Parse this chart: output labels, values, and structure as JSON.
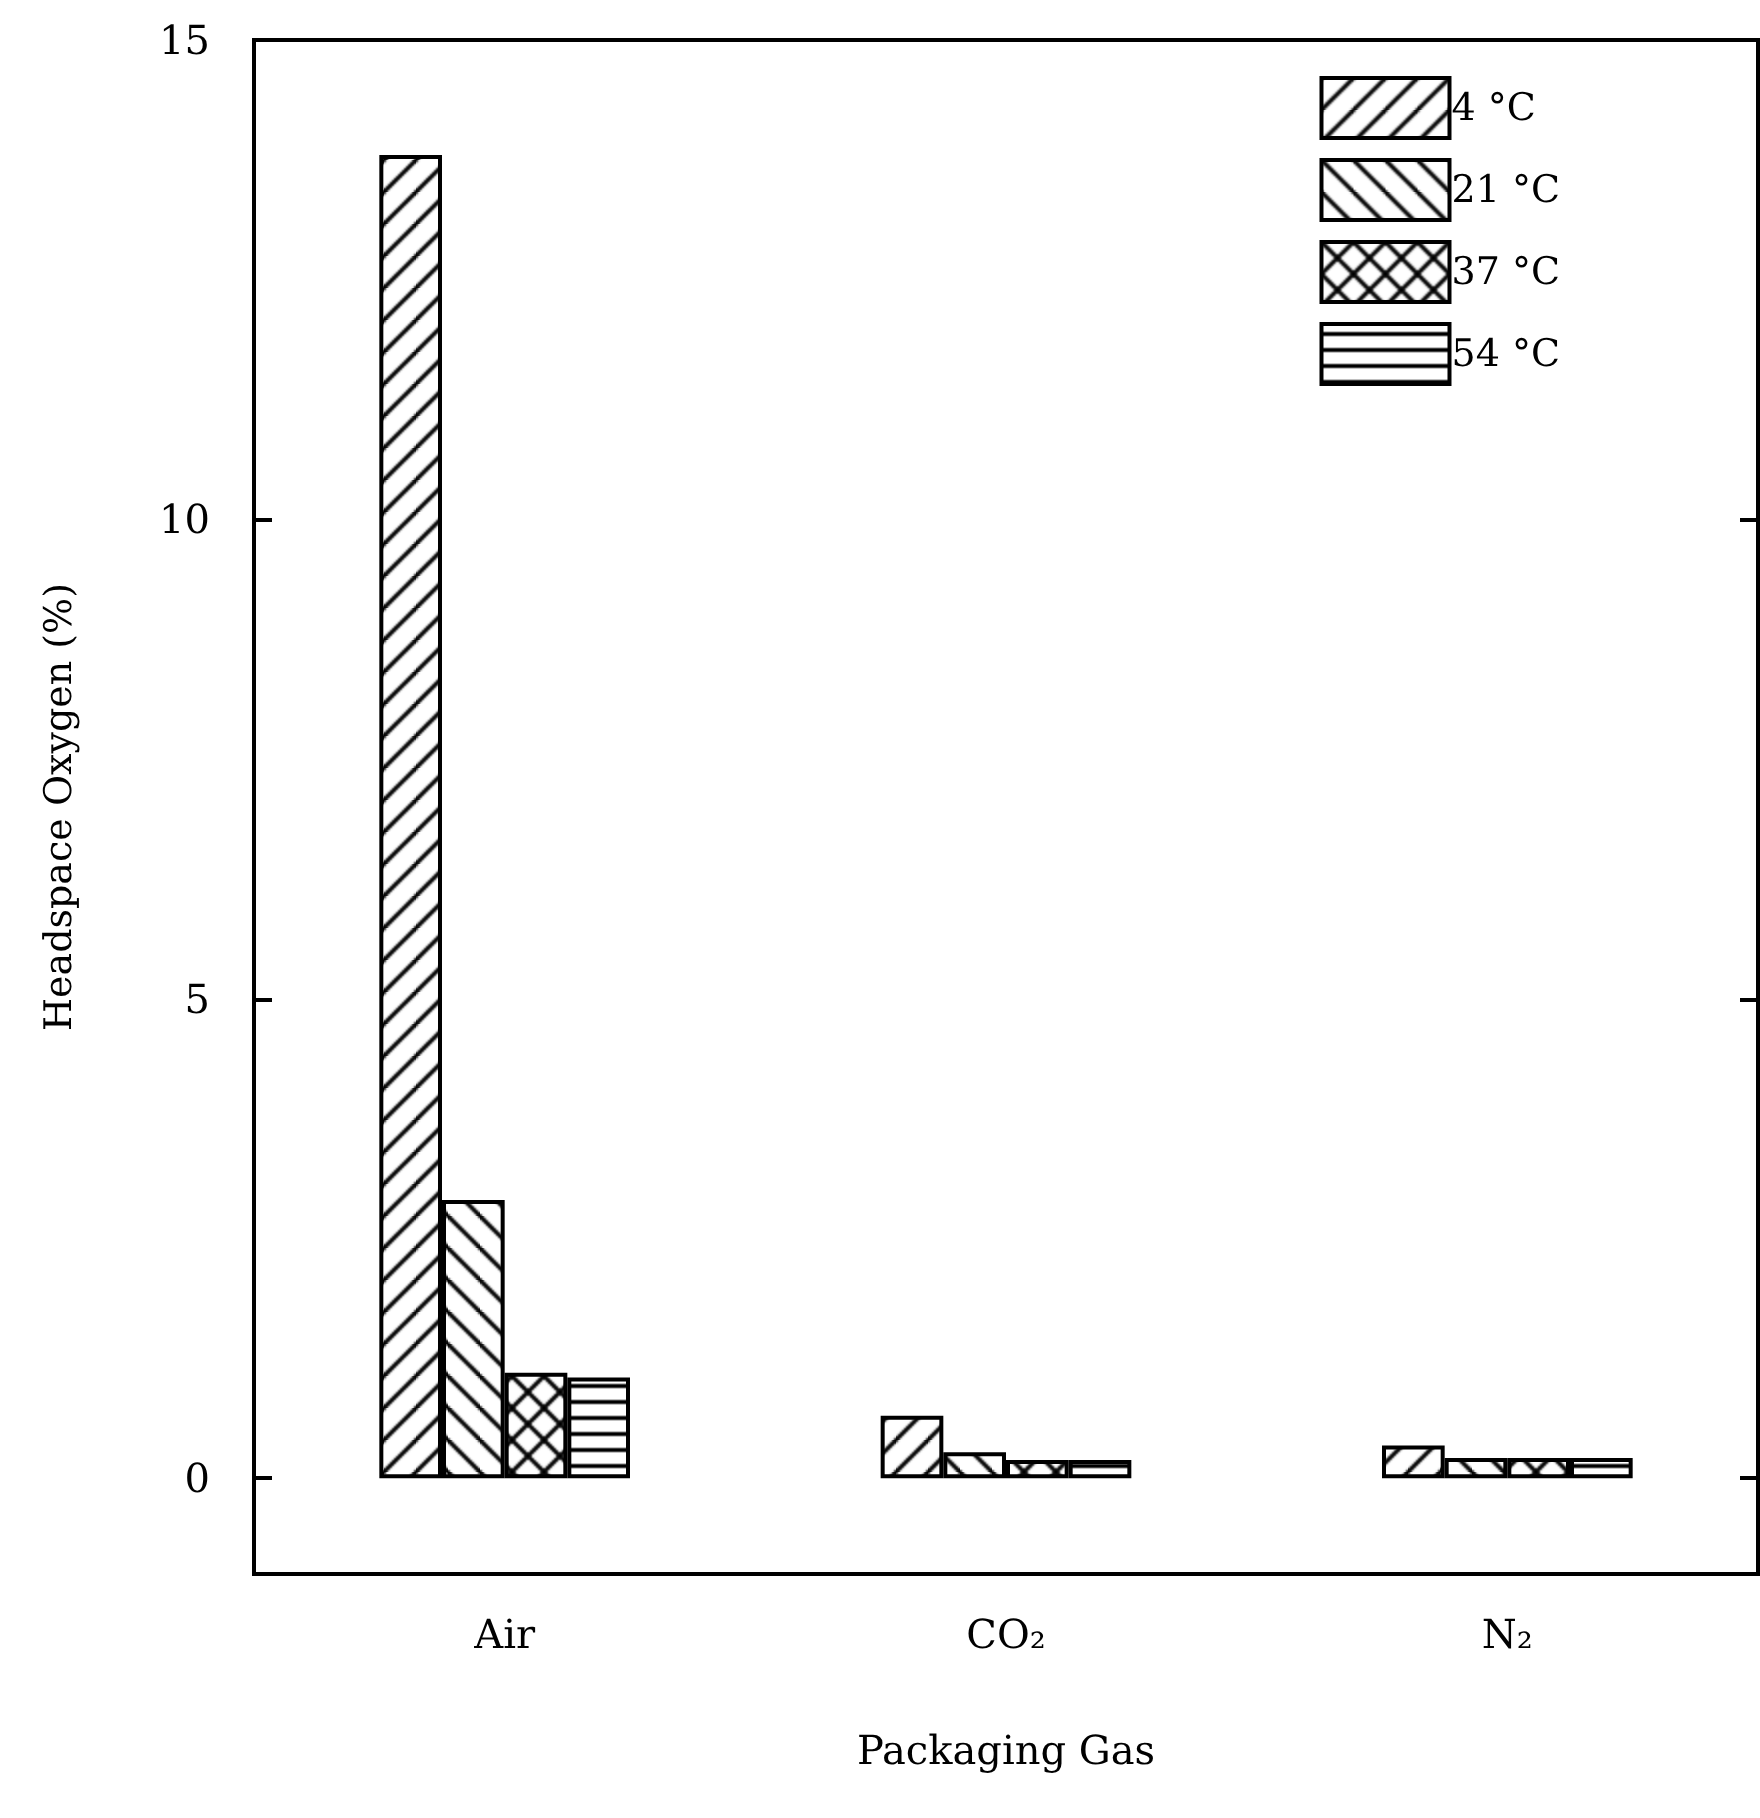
{
  "chart_data": {
    "type": "bar",
    "xlabel": "Packaging Gas",
    "ylabel": "Headspace Oxygen (%)",
    "categories": [
      "Air",
      "CO₂",
      "N₂"
    ],
    "series": [
      {
        "name": "4 °C",
        "color": "#000000",
        "values": [
          13.8,
          0.65,
          0.34
        ]
      },
      {
        "name": "21 °C",
        "color": "#000000",
        "values": [
          2.9,
          0.27,
          0.21
        ]
      },
      {
        "name": "37 °C",
        "color": "#000000",
        "values": [
          1.1,
          0.19,
          0.21
        ]
      },
      {
        "name": "54 °C",
        "color": "#000000",
        "values": [
          1.05,
          0.19,
          0.21
        ]
      }
    ],
    "ylim": [
      -1,
      15
    ],
    "yticks": [
      0,
      5,
      10,
      15
    ],
    "grid": false,
    "legend": "top right"
  }
}
